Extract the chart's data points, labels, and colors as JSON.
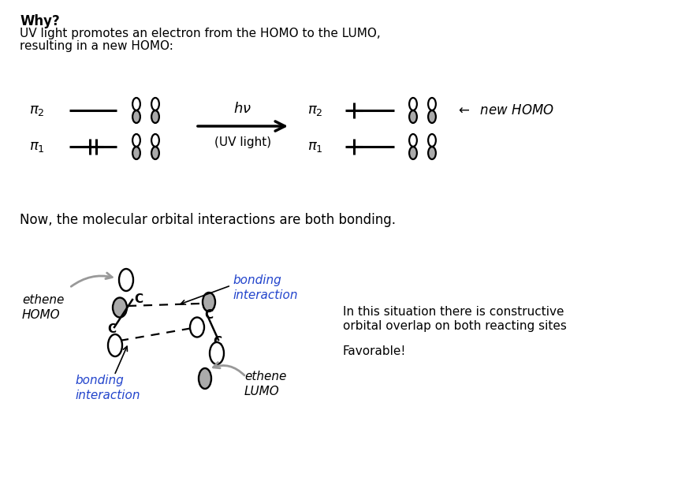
{
  "bg_color": "#ffffff",
  "title_bold": "Why?",
  "subtitle_line1": "UV light promotes an electron from the HOMO to the LUMO,",
  "subtitle_line2": "resulting in a new HOMO:",
  "middle_text": "Now, the molecular orbital interactions are both bonding.",
  "hnu": "hν",
  "uv_light": "(UV light)",
  "new_homo": "new HOMO",
  "right_text1": "In this situation there is constructive",
  "right_text2": "orbital overlap on both reacting sites",
  "right_text3": "Favorable!",
  "ethene_homo": "ethene\nHOMO",
  "ethene_lumo": "ethene\nLUMO",
  "bonding_top": "bonding\ninteraction",
  "bonding_bot": "bonding\ninteraction",
  "blue": "#2244cc",
  "gray_arrow": "#999999",
  "figw": 8.74,
  "figh": 6.1,
  "dpi": 100
}
